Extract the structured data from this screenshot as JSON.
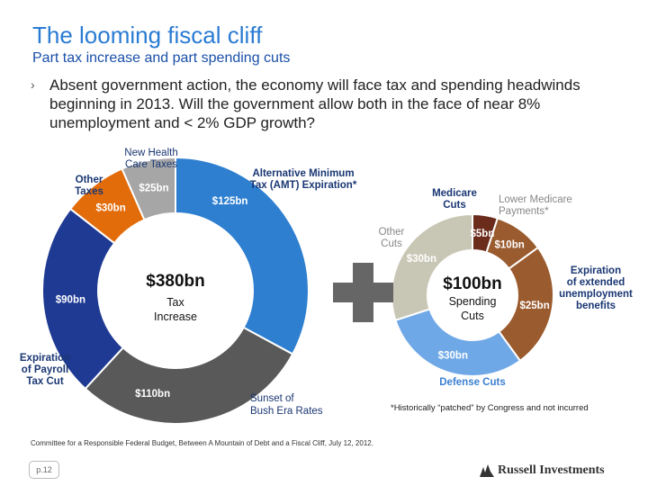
{
  "slide": {
    "title": "The looming fiscal cliff",
    "subtitle": "Part tax increase and part spending cuts",
    "bullet_marker": "›",
    "bullet": "Absent government action, the economy will face tax and spending headwinds beginning in 2013. Will the government allow both in the face of near 8% unemployment and < 2% GDP growth?",
    "source": "Committee for a Responsible Federal Budget, Between A Mountain of Debt and a Fiscal Cliff, July 12, 2012.",
    "footnote": "*Historically “patched” by Congress and not incurred",
    "page": "p.12",
    "logo": "Russell Investments",
    "plus_symbol": "plus"
  },
  "colors": {
    "title": "#2a7bd2",
    "navy": "#1a3773",
    "tax_blue": "#2f7fd0",
    "tax_gray": "#595959",
    "tax_navy": "#1f3a93",
    "tax_orange": "#e36c0a",
    "tax_lightgray": "#a6a6a6",
    "cut_beige": "#c8c6b4",
    "cut_darkred": "#6b2c1c",
    "cut_brown": "#9a5b2e",
    "cut_lightblue": "#6fa8e6"
  },
  "tax_chart": {
    "center_value": "$380bn",
    "center_label_1": "Tax",
    "center_label_2": "Increase",
    "segments": [
      {
        "name": "Alternative Minimum Tax (AMT) Expiration*",
        "value": 125,
        "label": "$125bn"
      },
      {
        "name": "Sunset of Bush Era Rates",
        "value": 110,
        "label": "$110bn"
      },
      {
        "name": "Expiration of Payroll Tax Cut",
        "value": 90,
        "label": "$90bn"
      },
      {
        "name": "Other Taxes",
        "value": 30,
        "label": "$30bn"
      },
      {
        "name": "New Health Care Taxes",
        "value": 25,
        "label": "$25bn"
      }
    ],
    "callouts": {
      "new_health_1": "New Health",
      "new_health_2": "Care Taxes",
      "other_1": "Other",
      "other_2": "Taxes",
      "amt_1": "Alternative Minimum",
      "amt_2": "Tax (AMT) Expiration*",
      "payroll_1": "Expiration",
      "payroll_2": "of Payroll",
      "payroll_3": "Tax Cut",
      "bush_1": "Sunset of",
      "bush_2": "Bush Era Rates"
    }
  },
  "cuts_chart": {
    "center_value": "$100bn",
    "center_label_1": "Spending",
    "center_label_2": "Cuts",
    "segments": [
      {
        "name": "Lower Medicare Payments*",
        "value": 10,
        "label": "$10bn"
      },
      {
        "name": "Expiration of extended unemployment benefits",
        "value": 25,
        "label": "$25bn"
      },
      {
        "name": "Defense Cuts",
        "value": 30,
        "label": "$30bn"
      },
      {
        "name": "Other Cuts",
        "value": 30,
        "label": "$30bn"
      },
      {
        "name": "Medicare Cuts",
        "value": 5,
        "label": "$5bn"
      }
    ],
    "callouts": {
      "medicare_1": "Medicare",
      "medicare_2": "Cuts",
      "lower_1": "Lower Medicare",
      "lower_2": "Payments*",
      "other_1": "Other",
      "other_2": "Cuts",
      "unemp_1": "Expiration",
      "unemp_2": "of extended",
      "unemp_3": "unemployment",
      "unemp_4": "benefits",
      "defense": "Defense Cuts"
    }
  }
}
